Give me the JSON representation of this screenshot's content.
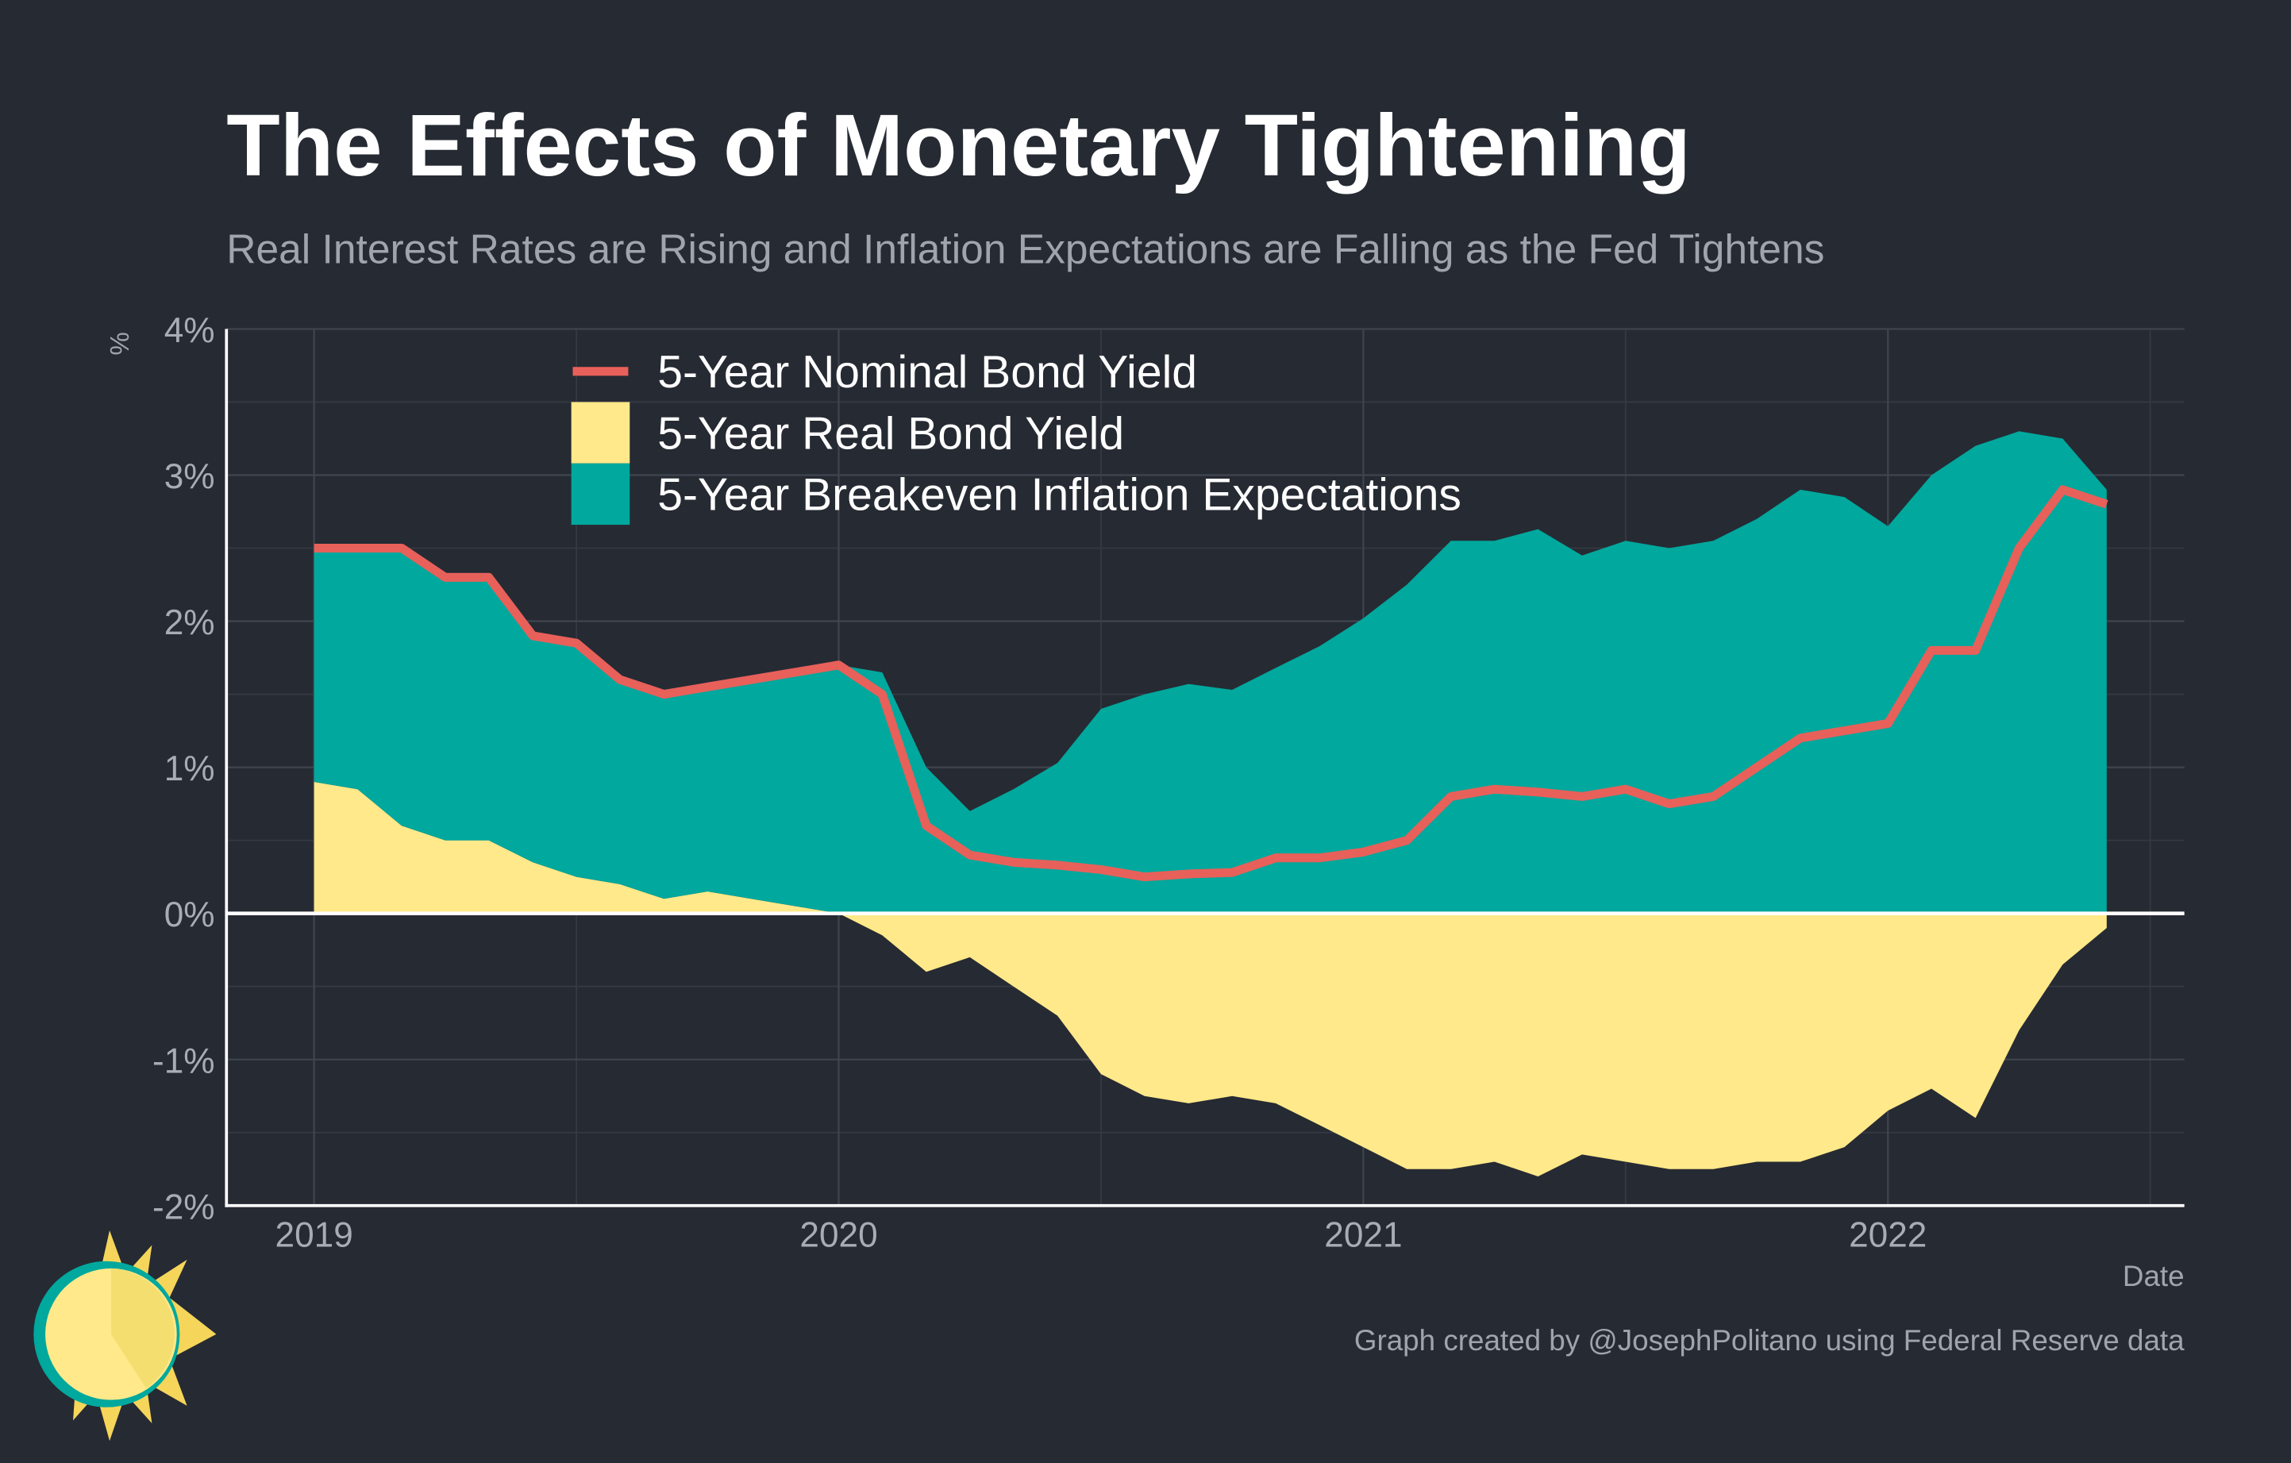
{
  "chart_data": {
    "type": "stacked-area-line",
    "title": "The Effects of Monetary Tightening",
    "subtitle": "Real Interest Rates are Rising and Inflation Expectations are Falling as the Fed Tightens",
    "y_label": "%",
    "x_label": "Date",
    "caption": "Graph created by @JosephPolitano using Federal Reserve data",
    "x": [
      2019,
      2019.083,
      2019.167,
      2019.25,
      2019.333,
      2019.417,
      2019.5,
      2019.583,
      2019.667,
      2019.75,
      2019.833,
      2019.917,
      2020,
      2020.083,
      2020.167,
      2020.25,
      2020.333,
      2020.417,
      2020.5,
      2020.583,
      2020.667,
      2020.75,
      2020.833,
      2020.917,
      2021,
      2021.083,
      2021.167,
      2021.25,
      2021.333,
      2021.417,
      2021.5,
      2021.583,
      2021.667,
      2021.75,
      2021.833,
      2021.917,
      2022,
      2022.083,
      2022.167,
      2022.25,
      2022.333,
      2022.417
    ],
    "series": [
      {
        "name": "5-Year Nominal Bond Yield",
        "color": "#e8605a",
        "kind": "line",
        "values": [
          2.5,
          2.5,
          2.5,
          2.3,
          2.3,
          1.9,
          1.85,
          1.6,
          1.5,
          1.55,
          1.6,
          1.65,
          1.7,
          1.5,
          0.6,
          0.4,
          0.35,
          0.33,
          0.3,
          0.25,
          0.27,
          0.28,
          0.38,
          0.38,
          0.42,
          0.5,
          0.8,
          0.85,
          0.83,
          0.8,
          0.85,
          0.75,
          0.8,
          1.0,
          1.2,
          1.25,
          1.3,
          1.8,
          1.8,
          2.5,
          2.9,
          2.8
        ]
      },
      {
        "name": "5-Year Real Bond Yield",
        "color": "#ffe98a",
        "kind": "area",
        "values": [
          0.9,
          0.85,
          0.6,
          0.5,
          0.5,
          0.35,
          0.25,
          0.2,
          0.1,
          0.15,
          0.1,
          0.05,
          0.0,
          -0.15,
          -0.4,
          -0.3,
          -0.5,
          -0.7,
          -1.1,
          -1.25,
          -1.3,
          -1.25,
          -1.3,
          -1.45,
          -1.6,
          -1.75,
          -1.75,
          -1.7,
          -1.8,
          -1.65,
          -1.7,
          -1.75,
          -1.75,
          -1.7,
          -1.7,
          -1.6,
          -1.35,
          -1.2,
          -1.4,
          -0.8,
          -0.35,
          -0.1
        ]
      },
      {
        "name": "5-Year Breakeven Inflation Expectations",
        "color": "#00a89d",
        "kind": "area",
        "values": [
          1.6,
          1.65,
          1.9,
          1.8,
          1.8,
          1.55,
          1.6,
          1.4,
          1.4,
          1.4,
          1.5,
          1.6,
          1.7,
          1.65,
          1.0,
          0.7,
          0.85,
          1.03,
          1.4,
          1.5,
          1.57,
          1.53,
          1.68,
          1.83,
          2.02,
          2.25,
          2.55,
          2.55,
          2.63,
          2.45,
          2.55,
          2.5,
          2.55,
          2.7,
          2.9,
          2.85,
          2.65,
          3.0,
          3.2,
          3.3,
          3.25,
          2.9
        ]
      }
    ],
    "xlim": [
      2018.833,
      2022.565
    ],
    "xticks": [
      2019,
      2020,
      2021,
      2022
    ],
    "ylim": [
      -2,
      4
    ],
    "yticks": [
      {
        "value": -2,
        "label": "-2%"
      },
      {
        "value": -1,
        "label": "-1%"
      },
      {
        "value": 0,
        "label": "0%"
      },
      {
        "value": 1,
        "label": "1%"
      },
      {
        "value": 2,
        "label": "2%"
      },
      {
        "value": 3,
        "label": "3%"
      },
      {
        "value": 4,
        "label": "4%"
      }
    ],
    "grid": true
  }
}
